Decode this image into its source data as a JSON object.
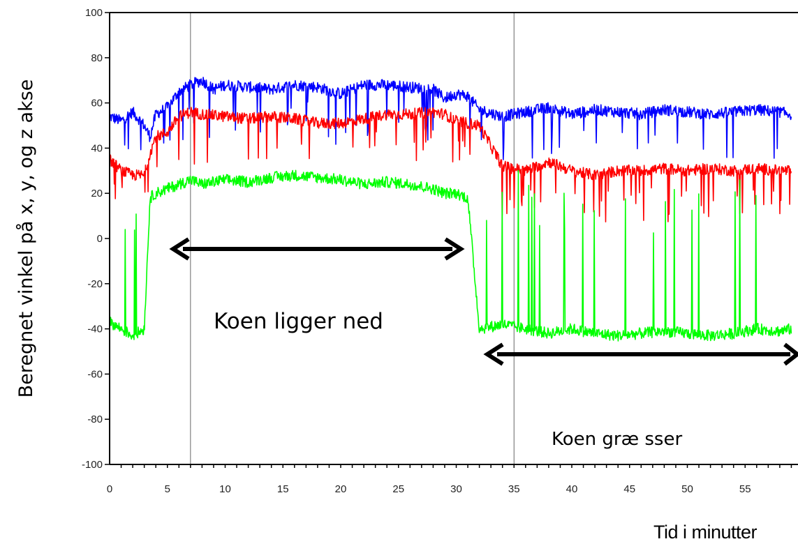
{
  "chart_data": {
    "type": "line",
    "ylabel": "Beregnet vinkel på x, y, og z akse",
    "xlabel": "Tid i minutter",
    "xlim": [
      0,
      59
    ],
    "ylim": [
      -100,
      100
    ],
    "x_ticks": [
      "0",
      "5",
      "10",
      "15",
      "20",
      "25",
      "30",
      "35",
      "40",
      "45",
      "50",
      "55"
    ],
    "y_ticks": [
      "100",
      "80",
      "60",
      "40",
      "20",
      "0",
      "-20",
      "-40",
      "-60",
      "-80",
      "-100"
    ],
    "vertical_markers": [
      7,
      35
    ],
    "colors": {
      "blue": "#0000ff",
      "red": "#ff0000",
      "green": "#00ff00"
    },
    "series": [
      {
        "color": "blue",
        "x": [
          0,
          1,
          2,
          3,
          3.5,
          4,
          5,
          6,
          7,
          8,
          9,
          10,
          12,
          14,
          16,
          18,
          20,
          22,
          24,
          26,
          28,
          29,
          30,
          31,
          32,
          34,
          36,
          38,
          40,
          42,
          44,
          46,
          48,
          50,
          52,
          54,
          56,
          58,
          59
        ],
        "y": [
          54,
          52,
          56,
          50,
          45,
          55,
          58,
          65,
          68,
          70,
          66,
          68,
          67,
          66,
          68,
          67,
          64,
          68,
          68,
          67,
          66,
          62,
          64,
          63,
          57,
          54,
          56,
          58,
          55,
          57,
          56,
          55,
          57,
          56,
          55,
          56,
          57,
          56,
          55
        ]
      },
      {
        "color": "red",
        "x": [
          0,
          1,
          2,
          3,
          3.5,
          4,
          5,
          6,
          7,
          8,
          10,
          12,
          14,
          16,
          18,
          20,
          22,
          24,
          26,
          28,
          29,
          30,
          31,
          32,
          34,
          36,
          38,
          40,
          42,
          44,
          46,
          48,
          50,
          52,
          54,
          56,
          58,
          59
        ],
        "y": [
          35,
          30,
          28,
          28,
          38,
          45,
          47,
          54,
          56,
          55,
          54,
          53,
          54,
          53,
          51,
          51,
          53,
          55,
          55,
          56,
          55,
          52,
          51,
          50,
          32,
          30,
          34,
          30,
          28,
          30,
          30,
          31,
          30,
          31,
          30,
          31,
          30,
          30
        ]
      },
      {
        "color": "green",
        "x": [
          0,
          1,
          2,
          3,
          3.5,
          4,
          5,
          6,
          7,
          8,
          10,
          12,
          14,
          16,
          18,
          20,
          22,
          24,
          26,
          28,
          29,
          30,
          31,
          32,
          34,
          36,
          38,
          40,
          42,
          44,
          46,
          48,
          50,
          52,
          54,
          56,
          58,
          59
        ],
        "y": [
          -37,
          -40,
          -43,
          -40,
          18,
          20,
          22,
          24,
          26,
          24,
          26,
          25,
          27,
          28,
          27,
          26,
          24,
          25,
          24,
          22,
          20,
          20,
          18,
          -40,
          -38,
          -40,
          -42,
          -40,
          -42,
          -43,
          -42,
          -41,
          -42,
          -43,
          -42,
          -40,
          -41,
          -40
        ]
      }
    ],
    "annotations": [
      {
        "text": "Koen ligger ned",
        "arrow_from": 5,
        "arrow_to": 30
      },
      {
        "text": "Koen græ sser",
        "arrow_from": 32.5,
        "arrow_to": 59
      }
    ]
  }
}
